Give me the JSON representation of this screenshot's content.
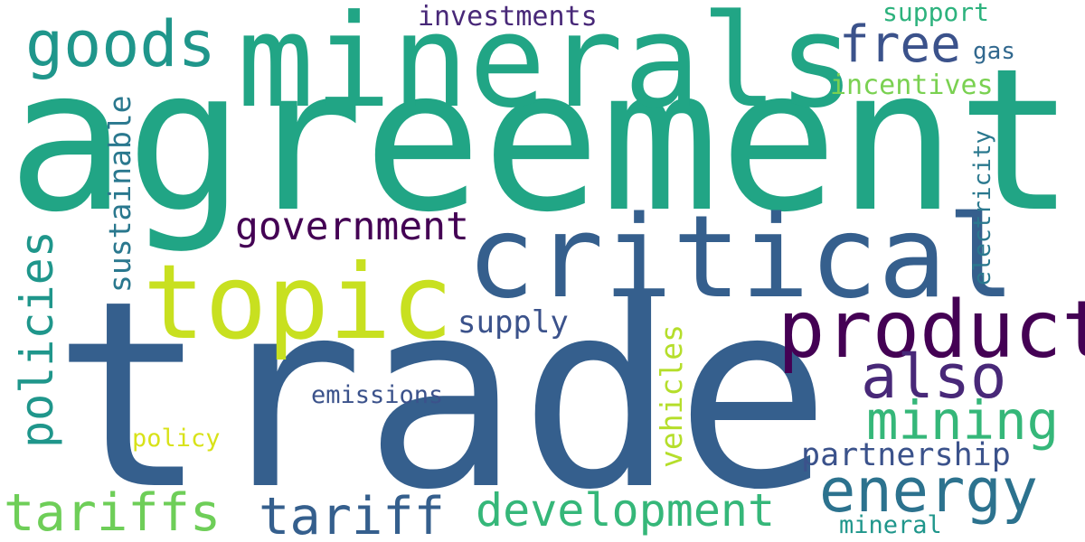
{
  "words": [
    {
      "text": "agreement",
      "color": "#21a585"
    },
    {
      "text": "trade",
      "color": "#355f8d"
    },
    {
      "text": "minerals",
      "color": "#21a585"
    },
    {
      "text": "critical",
      "color": "#355f8d"
    },
    {
      "text": "topic",
      "color": "#c8e020"
    },
    {
      "text": "products",
      "color": "#440154"
    },
    {
      "text": "goods",
      "color": "#1f968b"
    },
    {
      "text": "free",
      "color": "#3b528b"
    },
    {
      "text": "also",
      "color": "#482878"
    },
    {
      "text": "mining",
      "color": "#35b779"
    },
    {
      "text": "energy",
      "color": "#2c728e"
    },
    {
      "text": "tariffs",
      "color": "#6ece58"
    },
    {
      "text": "tariff",
      "color": "#355f8d"
    },
    {
      "text": "development",
      "color": "#35b779"
    },
    {
      "text": "government",
      "color": "#440154"
    },
    {
      "text": "policies",
      "color": "#1f968b"
    },
    {
      "text": "sustainable",
      "color": "#2a788e"
    },
    {
      "text": "partnership",
      "color": "#3b528b"
    },
    {
      "text": "investments",
      "color": "#482878"
    },
    {
      "text": "supply",
      "color": "#3b528b"
    },
    {
      "text": "emissions",
      "color": "#3b528b"
    },
    {
      "text": "vehicles",
      "color": "#b5de2b"
    },
    {
      "text": "policy",
      "color": "#d8e219"
    },
    {
      "text": "support",
      "color": "#2db27d"
    },
    {
      "text": "incentives",
      "color": "#7ad151"
    },
    {
      "text": "gas",
      "color": "#31688e"
    },
    {
      "text": "electricity",
      "color": "#2a788e"
    },
    {
      "text": "mineral",
      "color": "#1f968b"
    }
  ]
}
